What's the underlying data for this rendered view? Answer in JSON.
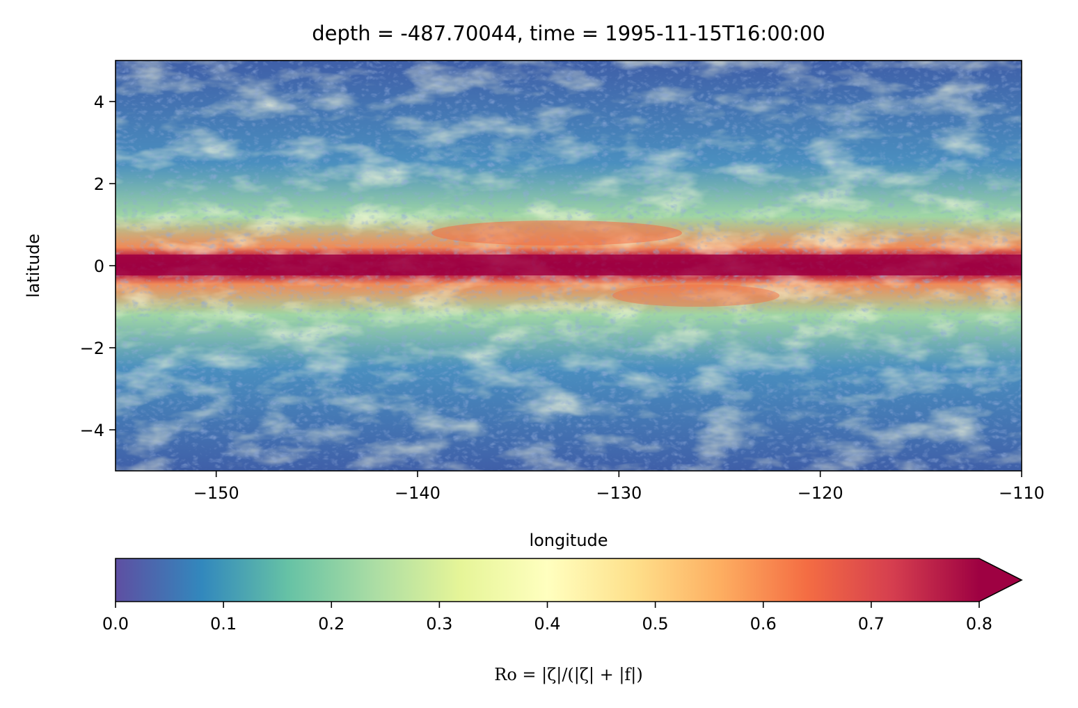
{
  "chart_data": {
    "type": "heatmap",
    "title": "depth = -487.70044, time = 1995-11-15T16:00:00",
    "xlabel": "longitude",
    "ylabel": "latitude",
    "xlim": [
      -155,
      -110
    ],
    "ylim": [
      -5,
      5
    ],
    "x_ticks": [
      -150,
      -140,
      -130,
      -120,
      -110
    ],
    "y_ticks": [
      -4,
      -2,
      0,
      2,
      4
    ],
    "x_tick_labels": [
      "−150",
      "−140",
      "−130",
      "−120",
      "−110"
    ],
    "y_tick_labels": [
      "−4",
      "−2",
      "0",
      "2",
      "4"
    ],
    "colormap": "Spectral_r",
    "colorbar": {
      "orientation": "horizontal",
      "label": "Ro = |ζ|/(|ζ| + |f|)",
      "vmin": 0.0,
      "vmax": 0.8,
      "extend": "max",
      "ticks": [
        0.0,
        0.1,
        0.2,
        0.3,
        0.4,
        0.5,
        0.6,
        0.7,
        0.8
      ],
      "tick_labels": [
        "0.0",
        "0.1",
        "0.2",
        "0.3",
        "0.4",
        "0.5",
        "0.6",
        "0.7",
        "0.8"
      ],
      "colors": [
        "#5e4fa2",
        "#3288bd",
        "#66c2a5",
        "#abdda4",
        "#e6f598",
        "#ffffbf",
        "#fee08b",
        "#fdae61",
        "#f46d43",
        "#d53e4f",
        "#9e0142"
      ]
    },
    "field_description": "High Rossby number band (dark red, Ro>0.8) along the equator (latitude 0) across all longitudes; elevated values (orange-red) near latitude ±1 between -140 and -125; lower values (blue-green) poleward of ±2."
  }
}
